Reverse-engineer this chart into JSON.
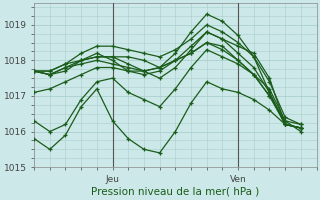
{
  "background_color": "#cce8e8",
  "grid_color": "#aacece",
  "line_color": "#1a5c1a",
  "ylim": [
    1015.0,
    1019.6
  ],
  "xlim": [
    0,
    54
  ],
  "jeu_x": 15,
  "ven_x": 39,
  "vline_color": "#555555",
  "tick_fontsize": 6.5,
  "label_fontsize": 7.5,
  "series": [
    {
      "x": [
        0,
        3,
        6,
        9,
        12,
        15,
        18,
        21,
        24,
        27,
        30,
        33,
        36,
        39,
        42,
        45,
        48,
        51
      ],
      "y": [
        1017.7,
        1017.7,
        1017.9,
        1018.0,
        1018.1,
        1018.1,
        1018.1,
        1018.0,
        1017.8,
        1018.2,
        1018.8,
        1019.3,
        1019.1,
        1018.7,
        1018.1,
        1017.1,
        1016.2,
        1016.1
      ]
    },
    {
      "x": [
        0,
        3,
        6,
        9,
        12,
        15,
        18,
        21,
        24,
        27,
        30,
        33,
        36,
        39,
        42,
        45,
        48,
        51
      ],
      "y": [
        1017.7,
        1017.6,
        1017.7,
        1018.0,
        1018.2,
        1018.0,
        1017.7,
        1017.7,
        1017.5,
        1017.8,
        1018.3,
        1018.8,
        1018.6,
        1018.4,
        1018.2,
        1017.5,
        1016.2,
        1016.1
      ]
    },
    {
      "x": [
        0,
        3,
        6,
        9,
        12,
        15,
        18,
        21,
        24,
        27,
        30,
        33,
        36,
        39,
        42,
        45,
        48,
        51
      ],
      "y": [
        1017.7,
        1017.6,
        1017.8,
        1017.9,
        1018.0,
        1017.9,
        1017.8,
        1017.7,
        1017.8,
        1018.0,
        1018.2,
        1018.5,
        1018.4,
        1018.0,
        1017.6,
        1017.0,
        1016.2,
        1016.1
      ]
    },
    {
      "x": [
        0,
        3,
        6,
        9,
        12,
        15,
        18,
        21,
        24,
        27,
        30,
        33,
        36,
        39,
        42,
        45,
        48,
        51
      ],
      "y": [
        1017.7,
        1017.6,
        1017.8,
        1018.0,
        1018.1,
        1018.1,
        1017.9,
        1017.7,
        1017.8,
        1018.0,
        1018.2,
        1018.5,
        1018.3,
        1018.0,
        1017.6,
        1017.0,
        1016.3,
        1016.2
      ]
    },
    {
      "x": [
        0,
        3,
        6,
        9,
        12,
        15,
        18,
        21,
        24,
        27,
        30,
        33,
        36,
        39,
        42,
        45,
        48,
        51
      ],
      "y": [
        1016.3,
        1016.0,
        1016.2,
        1016.9,
        1017.4,
        1017.5,
        1017.1,
        1016.9,
        1016.7,
        1017.2,
        1017.8,
        1018.3,
        1018.1,
        1017.9,
        1017.6,
        1017.2,
        1016.3,
        1016.0
      ]
    },
    {
      "x": [
        0,
        3,
        6,
        9,
        12,
        15,
        18,
        21,
        24,
        27,
        30,
        33,
        36,
        39,
        42,
        45,
        48,
        51
      ],
      "y": [
        1015.8,
        1015.5,
        1015.9,
        1016.7,
        1017.2,
        1016.3,
        1015.8,
        1015.5,
        1015.4,
        1016.0,
        1016.8,
        1017.4,
        1017.2,
        1017.1,
        1016.9,
        1016.6,
        1016.2,
        1016.1
      ]
    },
    {
      "x": [
        0,
        3,
        6,
        9,
        12,
        15,
        18,
        21,
        24,
        27,
        30,
        33,
        36,
        39,
        42,
        45,
        48,
        51
      ],
      "y": [
        1017.1,
        1017.2,
        1017.4,
        1017.6,
        1017.8,
        1017.8,
        1017.7,
        1017.6,
        1017.7,
        1018.0,
        1018.4,
        1018.8,
        1018.6,
        1018.2,
        1017.8,
        1017.1,
        1016.2,
        1016.1
      ]
    },
    {
      "x": [
        0,
        3,
        6,
        9,
        12,
        15,
        18,
        21,
        24,
        27,
        30,
        33,
        36,
        39,
        42,
        45,
        48,
        51
      ],
      "y": [
        1017.7,
        1017.7,
        1017.9,
        1018.2,
        1018.4,
        1018.4,
        1018.3,
        1018.2,
        1018.1,
        1018.3,
        1018.6,
        1019.0,
        1018.8,
        1018.5,
        1018.1,
        1017.4,
        1016.4,
        1016.2
      ]
    }
  ]
}
